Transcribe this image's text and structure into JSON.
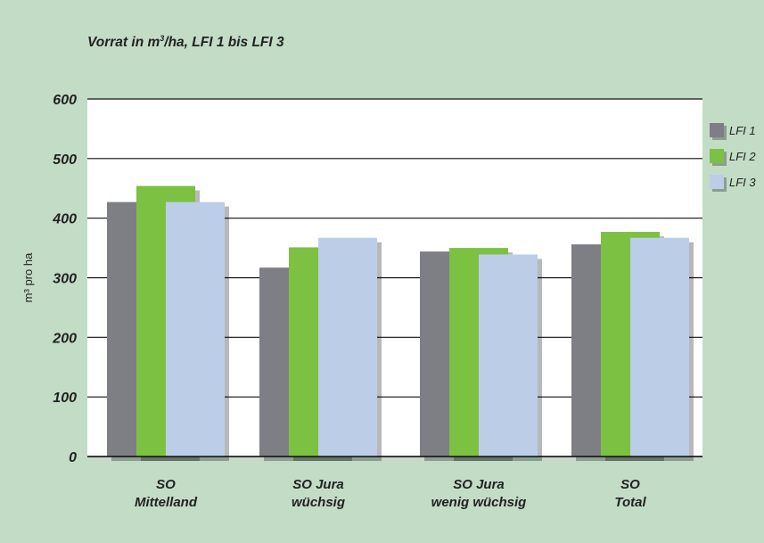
{
  "chart_data": {
    "type": "bar",
    "title_prefix": "Vorrat in m",
    "title_sup": "3",
    "title_suffix": "/ha, LFI 1 bis LFI 3",
    "ylabel": "m³ pro ha",
    "ylim": [
      0,
      600
    ],
    "yticks": [
      "0",
      "100",
      "200",
      "300",
      "400",
      "500",
      "600"
    ],
    "categories": [
      [
        "SO",
        "Mittelland"
      ],
      [
        "SO Jura",
        "wüchsig"
      ],
      [
        "SO Jura",
        "wenig wüchsig"
      ],
      [
        "SO",
        "Total"
      ]
    ],
    "series": [
      {
        "name": "LFI 1",
        "color": "#7d7f85",
        "values": [
          427,
          317,
          344,
          356
        ]
      },
      {
        "name": "LFI 2",
        "color": "#7cc142",
        "values": [
          454,
          351,
          350,
          377
        ]
      },
      {
        "name": "LFI 3",
        "color": "#bccde8",
        "values": [
          427,
          367,
          339,
          367
        ]
      }
    ],
    "legend_position": "right",
    "grid": true,
    "background": "#c3dcc6",
    "plot_background": "#ffffff"
  }
}
